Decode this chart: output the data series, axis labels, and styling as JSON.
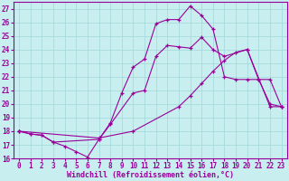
{
  "bg_color": "#c8eef0",
  "line_color": "#990099",
  "xlim": [
    -0.5,
    23.5
  ],
  "ylim": [
    16,
    27.5
  ],
  "yticks": [
    16,
    17,
    18,
    19,
    20,
    21,
    22,
    23,
    24,
    25,
    26,
    27
  ],
  "xticks": [
    0,
    1,
    2,
    3,
    4,
    5,
    6,
    7,
    8,
    9,
    10,
    11,
    12,
    13,
    14,
    15,
    16,
    17,
    18,
    19,
    20,
    21,
    22,
    23
  ],
  "xlabel": "Windchill (Refroidissement éolien,°C)",
  "line1_x": [
    0,
    1,
    2,
    3,
    4,
    5,
    6,
    7,
    8,
    9,
    10,
    11,
    12,
    13,
    14,
    15,
    16,
    17,
    18,
    19,
    20,
    21,
    22,
    23
  ],
  "line1_y": [
    18.0,
    17.8,
    17.7,
    17.2,
    16.9,
    16.5,
    16.1,
    17.4,
    18.6,
    20.8,
    22.7,
    23.3,
    25.9,
    26.2,
    26.2,
    27.2,
    26.5,
    25.5,
    22.0,
    21.8,
    21.8,
    21.8,
    20.0,
    19.8
  ],
  "line2_x": [
    0,
    1,
    2,
    3,
    7,
    8,
    10,
    11,
    12,
    13,
    14,
    15,
    16,
    17,
    18,
    20,
    21,
    22,
    23
  ],
  "line2_y": [
    18.0,
    17.8,
    17.7,
    17.2,
    17.4,
    18.5,
    20.8,
    21.0,
    23.5,
    24.3,
    24.2,
    24.1,
    24.9,
    24.0,
    23.5,
    24.0,
    21.8,
    21.8,
    19.8
  ],
  "line3_x": [
    0,
    7,
    10,
    14,
    15,
    16,
    17,
    18,
    19,
    20,
    22,
    23
  ],
  "line3_y": [
    18.0,
    17.5,
    18.0,
    19.8,
    20.6,
    21.5,
    22.4,
    23.2,
    23.8,
    24.0,
    19.8,
    19.8
  ],
  "grid_color": "#a0d8d8",
  "tick_fontsize": 5.5,
  "xlabel_fontsize": 6.0
}
